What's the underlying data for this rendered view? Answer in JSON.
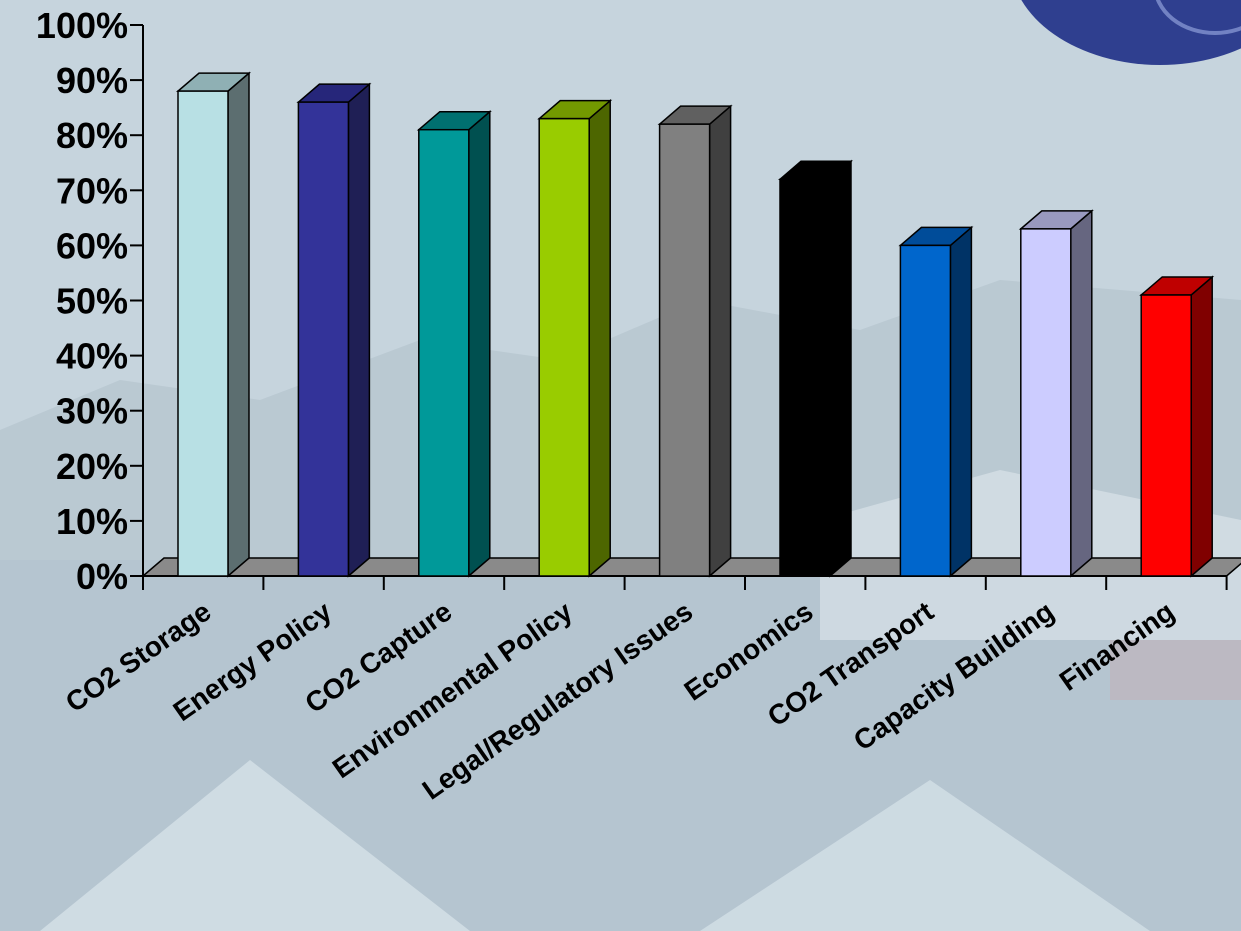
{
  "chart_data": {
    "type": "bar",
    "style": "3d-column",
    "categories": [
      "CO2 Storage",
      "Energy Policy",
      "CO2 Capture",
      "Environmental Policy",
      "Legal/Regulatory Issues",
      "Economics",
      "CO2 Transport",
      "Capacity Building",
      "Financing"
    ],
    "values": [
      88,
      86,
      81,
      83,
      82,
      72,
      60,
      63,
      51
    ],
    "value_unit": "%",
    "colors": [
      {
        "front": "#b8e0e4",
        "side": "#5c6e70",
        "top": "#8fb0b4"
      },
      {
        "front": "#333399",
        "side": "#1f1f55",
        "top": "#26267a"
      },
      {
        "front": "#009999",
        "side": "#005050",
        "top": "#007070"
      },
      {
        "front": "#99cc00",
        "side": "#4d6600",
        "top": "#739900"
      },
      {
        "front": "#808080",
        "side": "#404040",
        "top": "#606060"
      },
      {
        "front": "#000000",
        "side": "#000000",
        "top": "#000000"
      },
      {
        "front": "#0066cc",
        "side": "#003366",
        "top": "#004c99"
      },
      {
        "front": "#ccccff",
        "side": "#666680",
        "top": "#9999bf"
      },
      {
        "front": "#ff0000",
        "side": "#800000",
        "top": "#bf0000"
      }
    ],
    "y_ticks": [
      "0%",
      "10%",
      "20%",
      "30%",
      "40%",
      "50%",
      "60%",
      "70%",
      "80%",
      "90%",
      "100%"
    ],
    "ylim": [
      0,
      100
    ],
    "grid": false,
    "legend": "none",
    "title": "",
    "xlabel": "",
    "ylabel": ""
  }
}
